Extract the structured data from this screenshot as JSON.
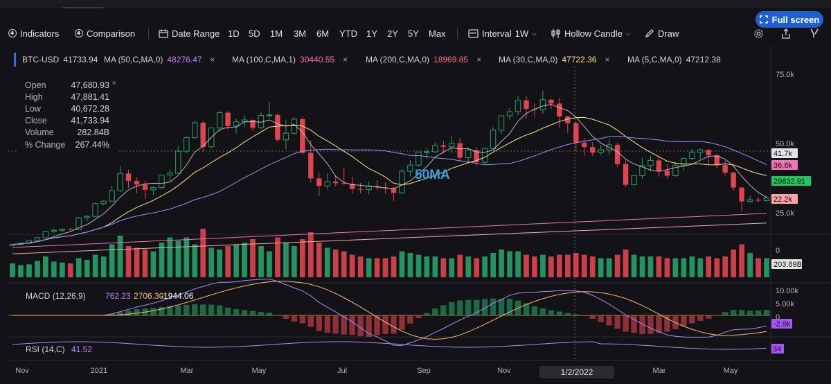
{
  "toolbar": {
    "indicators": "Indicators",
    "comparison": "Comparison",
    "date_range": "Date Range",
    "ranges": [
      "1D",
      "5D",
      "1M",
      "3M",
      "6M",
      "YTD",
      "1Y",
      "2Y",
      "5Y",
      "Max"
    ],
    "interval": "Interval",
    "interval_value": "1W",
    "chart_style": "Hollow Candle",
    "draw": "Draw",
    "fullscreen": "Full screen"
  },
  "legend": {
    "symbol": "BTC-USD",
    "symbol_value": "41733.94",
    "mas": [
      {
        "label": "MA (50,C,MA,0)",
        "value": "48276.47",
        "color": "#c084fc"
      },
      {
        "label": "MA (100,C,MA,1)",
        "value": "30440.55",
        "color": "#f472b6"
      },
      {
        "label": "MA (200,C,MA,0)",
        "value": "18969.85",
        "color": "#fb7185"
      },
      {
        "label": "MA (30,C,MA,0)",
        "value": "47722.36",
        "color": "#fde68a"
      },
      {
        "label": "MA (5,C,MA,0)",
        "value": "47212.38",
        "color": "#d4d4d8"
      }
    ],
    "close_symbol": "×"
  },
  "ohlc": {
    "rows": [
      {
        "k": "Open",
        "v": "47,680.93"
      },
      {
        "k": "High",
        "v": "47,881.41"
      },
      {
        "k": "Low",
        "v": "40,672.28"
      },
      {
        "k": "Close",
        "v": "41,733.94"
      },
      {
        "k": "Volume",
        "v": "282.84B"
      },
      {
        "k": "% Change",
        "v": "267.44%"
      }
    ]
  },
  "annotation": "50MA",
  "price_axis": {
    "ticks": [
      "75.0k",
      "50.0k",
      "25.0k"
    ],
    "badges": [
      {
        "text": "41.7k",
        "bg": "#e4e4e7",
        "fg": "#111111"
      },
      {
        "text": "36.8k",
        "bg": "#f472b6",
        "fg": "#111111"
      },
      {
        "text": "29832.91",
        "bg": "#22c55e",
        "fg": "#111111"
      },
      {
        "text": "22.2k",
        "bg": "#fca5a5",
        "fg": "#111111"
      }
    ]
  },
  "volume_axis": {
    "zero": "0",
    "badge": "203.89B"
  },
  "macd": {
    "label": "MACD (12,26,9)",
    "v1": "762.23",
    "v1_color": "#c084fc",
    "v2": "2706.30",
    "v2_color": "#fdba74",
    "v3": "-1944.06",
    "v3_color": "#ffffff",
    "ticks": [
      "10.00k",
      "5.00k",
      "0"
    ],
    "badge": "-2.9k"
  },
  "rsi": {
    "label": "RSI (14,C)",
    "value": "41.52",
    "value_color": "#c084fc",
    "badge": "34"
  },
  "crosshair_date": "1/2/2022",
  "colors": {
    "up": "#26a269",
    "down": "#e0454f",
    "bg": "#131317"
  },
  "chart_data": {
    "type": "bar",
    "title": "BTC-USD",
    "x_labels": [
      "Nov",
      "2021",
      "Mar",
      "May",
      "Jul",
      "Sep",
      "Nov",
      "Mar",
      "May"
    ],
    "ylim": [
      0,
      80000
    ],
    "candles": [
      [
        13200,
        13800,
        13000,
        13600
      ],
      [
        13600,
        14200,
        13400,
        14000
      ],
      [
        14000,
        15100,
        13800,
        14900
      ],
      [
        14900,
        16200,
        14700,
        16000
      ],
      [
        16000,
        18500,
        15800,
        18300
      ],
      [
        18300,
        19300,
        17800,
        18700
      ],
      [
        18700,
        19400,
        18000,
        19100
      ],
      [
        19100,
        19600,
        18400,
        18900
      ],
      [
        18900,
        23500,
        18700,
        23200
      ],
      [
        23200,
        24200,
        21800,
        23700
      ],
      [
        23700,
        28500,
        23500,
        28300
      ],
      [
        28300,
        29500,
        27800,
        29200
      ],
      [
        29200,
        34800,
        28900,
        33000
      ],
      [
        33000,
        41900,
        32500,
        39200
      ],
      [
        39200,
        40500,
        34000,
        36500
      ],
      [
        36500,
        37800,
        32000,
        35200
      ],
      [
        35200,
        36500,
        30000,
        33300
      ],
      [
        33300,
        34500,
        31500,
        34100
      ],
      [
        34100,
        38700,
        33500,
        38600
      ],
      [
        38600,
        40600,
        36500,
        39300
      ],
      [
        39300,
        49000,
        39000,
        47200
      ],
      [
        47200,
        52600,
        46500,
        52100
      ],
      [
        52100,
        58300,
        51800,
        57500
      ],
      [
        57500,
        58100,
        47000,
        48800
      ],
      [
        48800,
        55800,
        48200,
        55600
      ],
      [
        55600,
        61800,
        54200,
        61100
      ],
      [
        61100,
        61600,
        55000,
        56300
      ],
      [
        56300,
        59000,
        53500,
        57800
      ],
      [
        57800,
        60300,
        55800,
        58500
      ],
      [
        58500,
        58800,
        54500,
        55700
      ],
      [
        55700,
        61200,
        55200,
        60100
      ],
      [
        60100,
        64900,
        59200,
        60300
      ],
      [
        60300,
        61000,
        50500,
        51300
      ],
      [
        51300,
        58500,
        48000,
        53700
      ],
      [
        53700,
        59500,
        53200,
        58800
      ],
      [
        58800,
        59600,
        46000,
        46600
      ],
      [
        46600,
        51200,
        36000,
        37400
      ],
      [
        37400,
        39500,
        31000,
        34700
      ],
      [
        34700,
        39200,
        33500,
        36300
      ],
      [
        36300,
        38500,
        34500,
        35700
      ],
      [
        35700,
        41300,
        35000,
        35500
      ],
      [
        35500,
        38000,
        32000,
        33600
      ],
      [
        33600,
        35800,
        32000,
        33400
      ],
      [
        33400,
        36200,
        31600,
        34700
      ],
      [
        34700,
        36800,
        33000,
        34200
      ],
      [
        34200,
        36000,
        31800,
        33900
      ],
      [
        33900,
        34500,
        29300,
        32200
      ],
      [
        32200,
        40800,
        31800,
        40000
      ],
      [
        40000,
        44000,
        38000,
        42200
      ],
      [
        42200,
        47000,
        41600,
        46900
      ],
      [
        46900,
        48200,
        44500,
        47000
      ],
      [
        47000,
        50400,
        46500,
        49300
      ],
      [
        49300,
        51000,
        46400,
        48800
      ],
      [
        48800,
        52800,
        46600,
        50100
      ],
      [
        50100,
        52000,
        43500,
        44900
      ],
      [
        44900,
        48500,
        42800,
        47600
      ],
      [
        47600,
        48600,
        42000,
        43200
      ],
      [
        43200,
        48500,
        42600,
        48200
      ],
      [
        48200,
        55900,
        47900,
        54800
      ],
      [
        54800,
        60000,
        53500,
        60000
      ],
      [
        60000,
        62800,
        58500,
        61500
      ],
      [
        61500,
        67000,
        60200,
        65600
      ],
      [
        65600,
        67100,
        59000,
        62500
      ],
      [
        62500,
        64500,
        59600,
        62200
      ],
      [
        62200,
        69000,
        60800,
        65800
      ],
      [
        65800,
        66000,
        62300,
        64400
      ],
      [
        64400,
        66300,
        55600,
        59700
      ],
      [
        59700,
        60000,
        53800,
        57300
      ],
      [
        57300,
        58000,
        47200,
        50300
      ],
      [
        50300,
        52000,
        45600,
        48700
      ],
      [
        48700,
        50500,
        45500,
        46700
      ],
      [
        46700,
        49500,
        45800,
        47700
      ],
      [
        47700,
        51900,
        46000,
        49500
      ],
      [
        49500,
        50200,
        41500,
        42600
      ],
      [
        42600,
        44000,
        34300,
        35100
      ],
      [
        35100,
        38500,
        34800,
        38400
      ],
      [
        38400,
        44800,
        37200,
        42000
      ],
      [
        42000,
        45500,
        40000,
        43900
      ],
      [
        43900,
        45700,
        38000,
        40200
      ],
      [
        40200,
        42500,
        37300,
        38400
      ],
      [
        38400,
        43200,
        38000,
        42200
      ],
      [
        42200,
        45000,
        40200,
        44600
      ],
      [
        44600,
        48000,
        44000,
        46800
      ],
      [
        46800,
        48200,
        44500,
        47700
      ],
      [
        47700,
        48000,
        42500,
        45800
      ],
      [
        45800,
        46000,
        41000,
        42200
      ],
      [
        42200,
        44000,
        38500,
        39500
      ],
      [
        39500,
        39800,
        33000,
        34100
      ],
      [
        34100,
        34500,
        25400,
        29100
      ],
      [
        29100,
        31200,
        28600,
        29700
      ],
      [
        29700,
        30600,
        28700,
        29400
      ],
      [
        29400,
        31400,
        29000,
        30300
      ]
    ],
    "volumes_billions": [
      80,
      70,
      75,
      95,
      120,
      90,
      85,
      80,
      110,
      100,
      130,
      120,
      190,
      240,
      180,
      170,
      160,
      150,
      200,
      230,
      210,
      230,
      190,
      280,
      170,
      160,
      180,
      190,
      200,
      220,
      180,
      150,
      230,
      200,
      180,
      220,
      260,
      200,
      170,
      160,
      150,
      130,
      120,
      110,
      110,
      110,
      120,
      150,
      140,
      130,
      120,
      120,
      110,
      110,
      130,
      120,
      110,
      120,
      140,
      160,
      150,
      150,
      130,
      120,
      130,
      120,
      130,
      130,
      140,
      130,
      120,
      110,
      110,
      130,
      160,
      130,
      120,
      120,
      120,
      110,
      110,
      110,
      120,
      110,
      120,
      110,
      120,
      160,
      190,
      140,
      110,
      110
    ]
  }
}
